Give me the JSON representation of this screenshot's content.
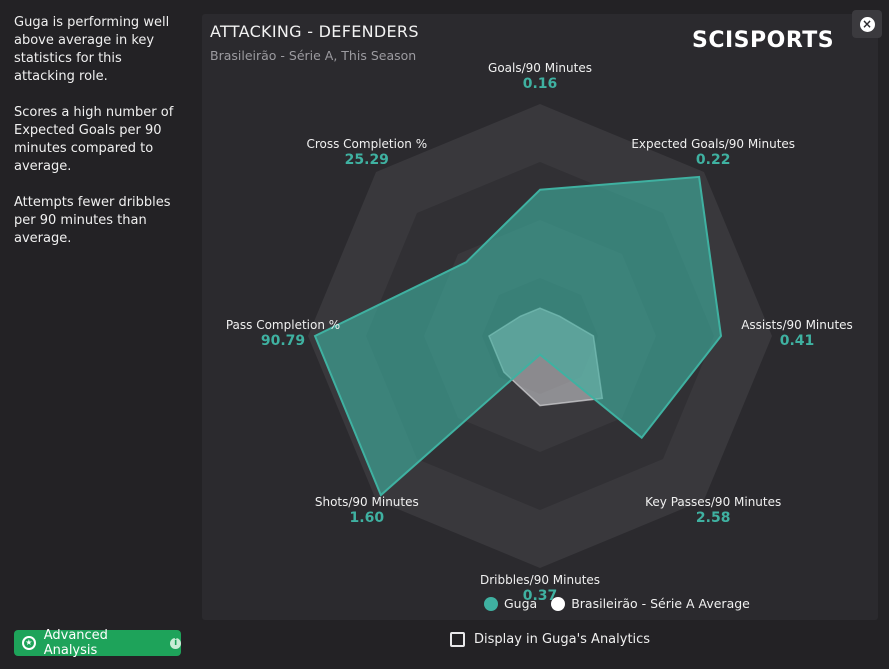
{
  "summary": {
    "lines": [
      "Guga is performing well above average in key statistics for this attacking role.",
      "Scores a high number of Expected Goals per 90 minutes compared to average.",
      "Attempts fewer dribbles per 90 minutes than average."
    ]
  },
  "panel": {
    "title": "ATTACKING - DEFENDERS",
    "subtitle": "Brasileirão - Série A, This Season",
    "logo_text": "SCISPORTS"
  },
  "close_icon": "×",
  "chart_data": {
    "type": "radar",
    "axes": [
      {
        "name": "Goals/90 Minutes",
        "value_label": "0.16",
        "player": 0.63,
        "average": 0.12
      },
      {
        "name": "Expected Goals/90 Minutes",
        "value_label": "0.22",
        "player": 0.97,
        "average": 0.12
      },
      {
        "name": "Assists/90 Minutes",
        "value_label": "0.41",
        "player": 0.78,
        "average": 0.23
      },
      {
        "name": "Key Passes/90 Minutes",
        "value_label": "2.58",
        "player": 0.62,
        "average": 0.38
      },
      {
        "name": "Dribbles/90 Minutes",
        "value_label": "0.37",
        "player": 0.08,
        "average": 0.3
      },
      {
        "name": "Shots/90 Minutes",
        "value_label": "1.60",
        "player": 0.97,
        "average": 0.22
      },
      {
        "name": "Pass Completion %",
        "value_label": "90.79",
        "player": 0.97,
        "average": 0.22
      },
      {
        "name": "Cross Completion %",
        "value_label": "25.29",
        "player": 0.45,
        "average": 0.12
      }
    ],
    "rings": 4,
    "colors": {
      "player": "#3fb1a1",
      "average": "#d6d6d8",
      "ring_dark": "#313034",
      "ring_light": "#39383c"
    },
    "legend": [
      {
        "label": "Guga",
        "color": "#3fb1a1"
      },
      {
        "label": "Brasileirão - Série A Average",
        "color": "#ffffff"
      }
    ]
  },
  "footer": {
    "advanced_label": "Advanced Analysis",
    "display_label": "Display in Guga's Analytics",
    "display_checked": false
  }
}
